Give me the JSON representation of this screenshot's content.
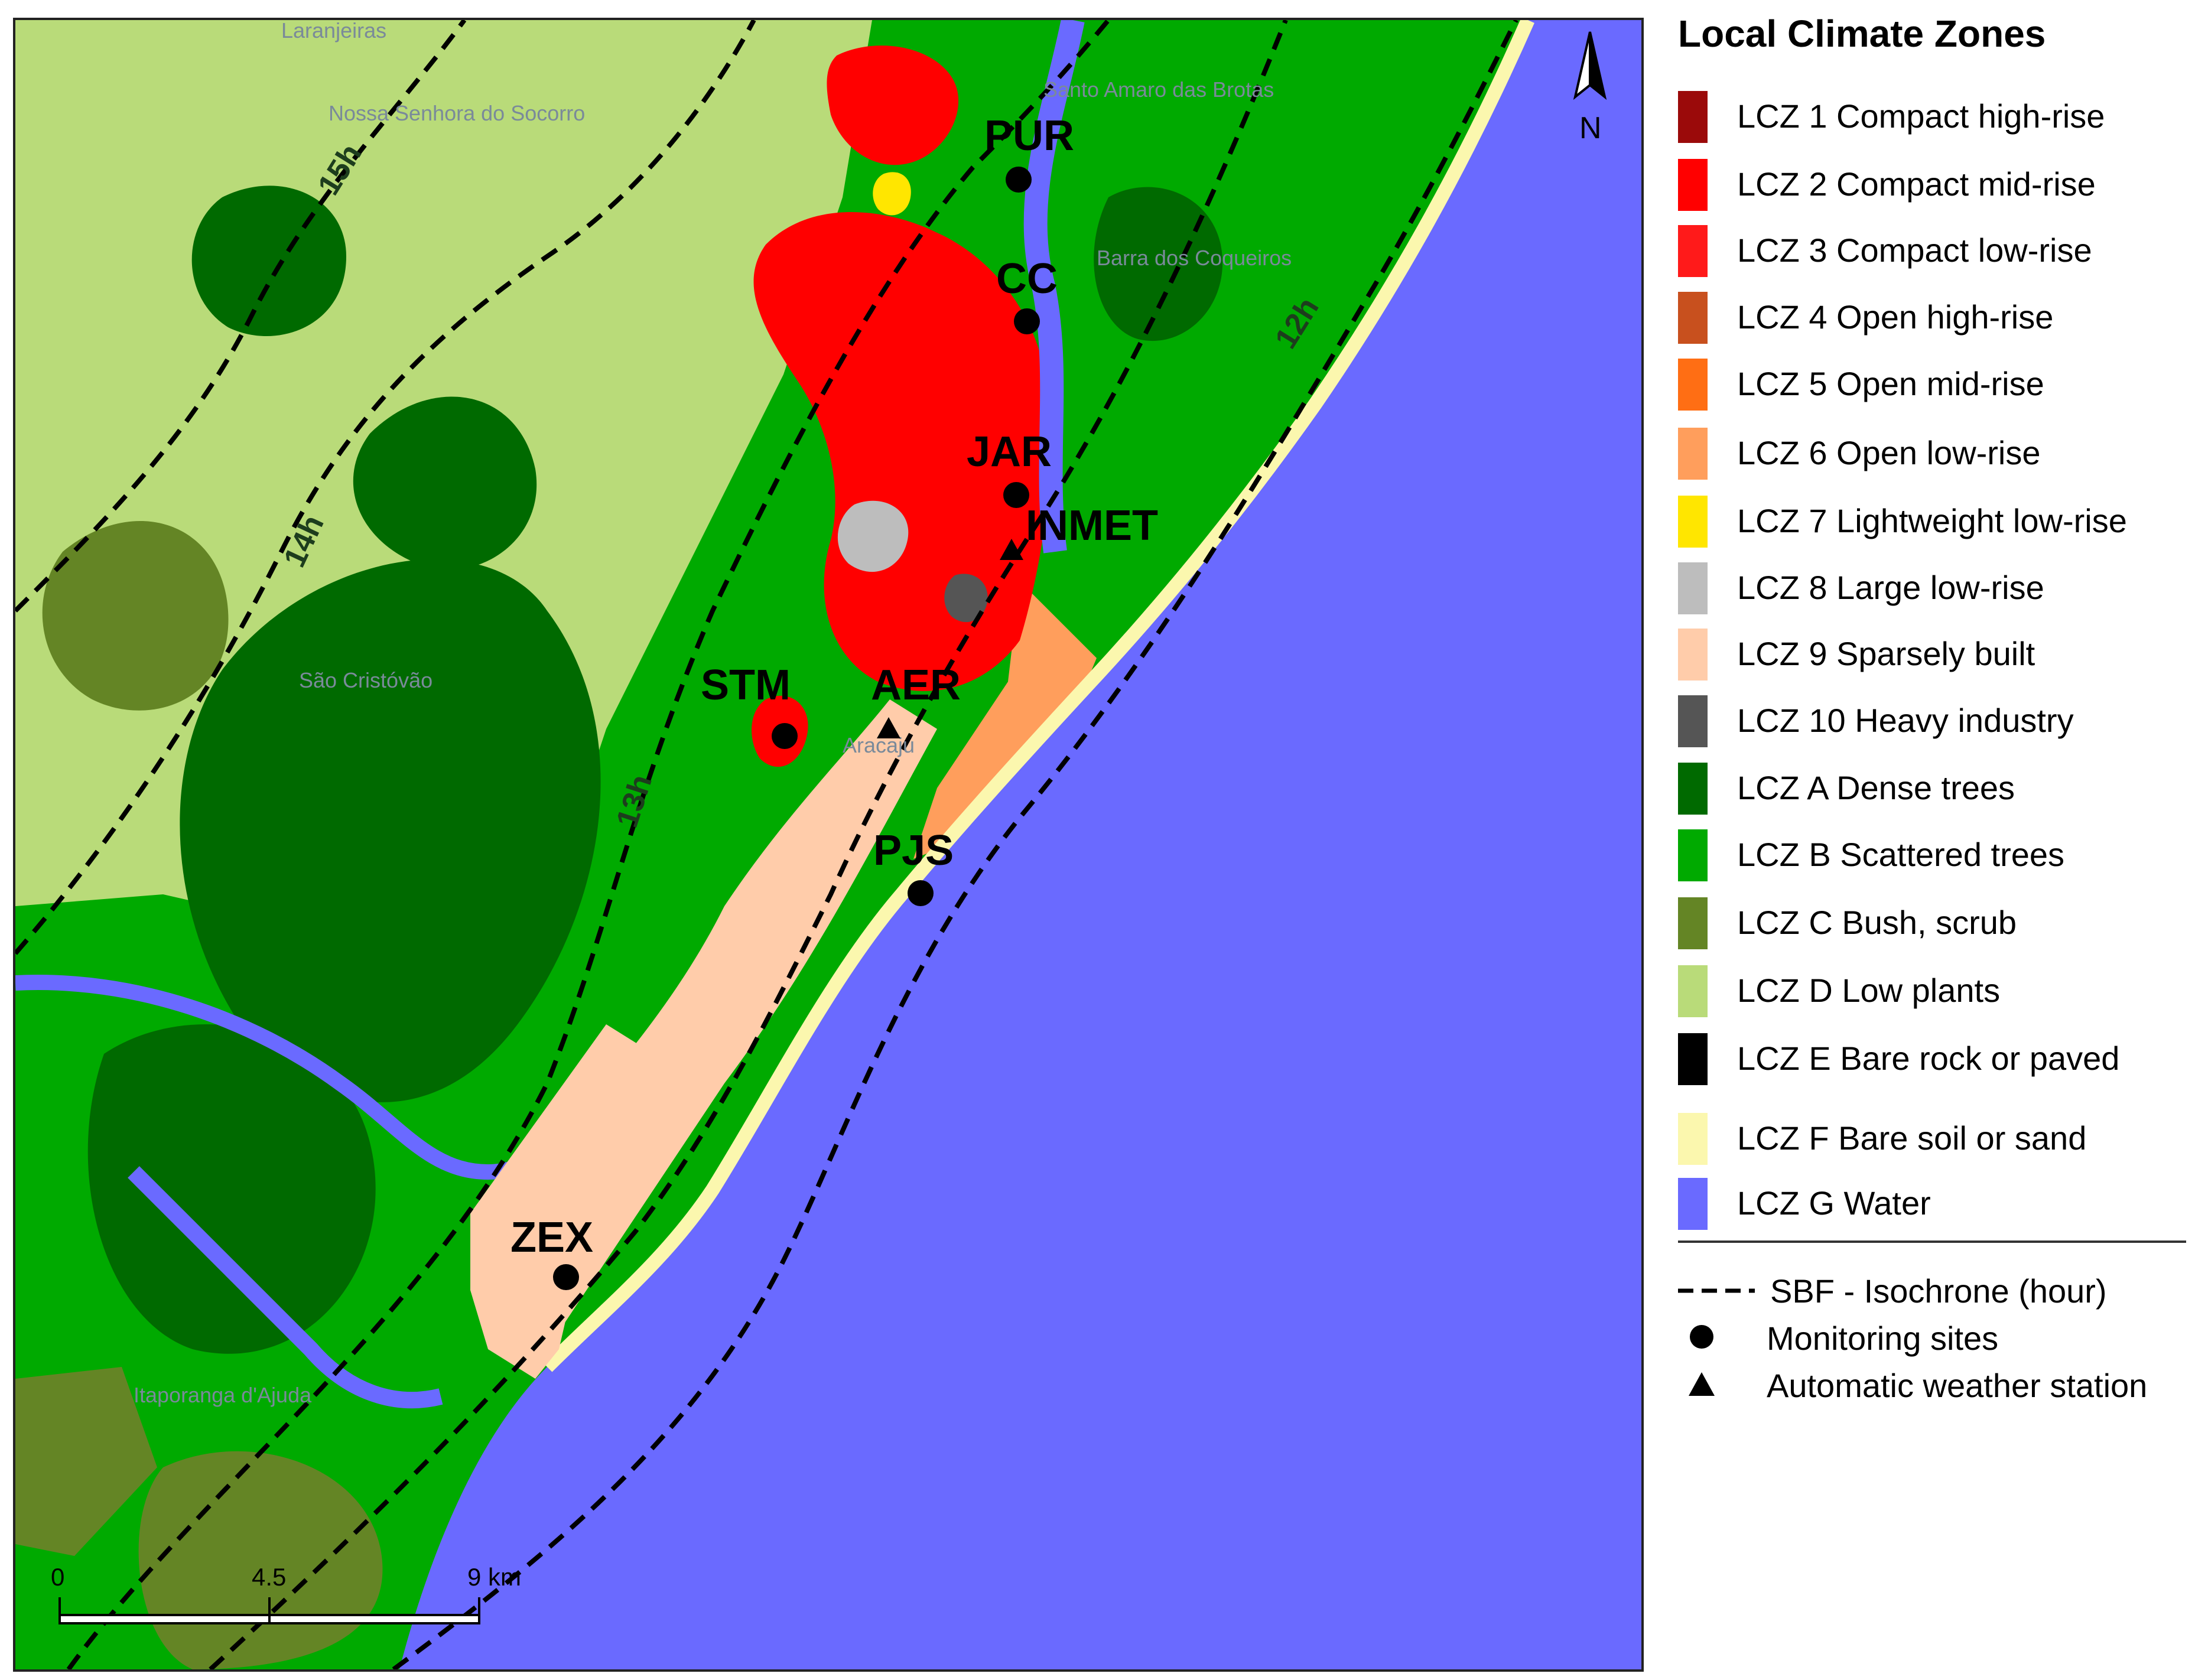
{
  "legend": {
    "title": "Local Climate Zones",
    "zones": [
      {
        "label": "LCZ 1 Compact high-rise",
        "color": "#9b0a0a"
      },
      {
        "label": "LCZ 2 Compact mid-rise",
        "color": "#ff0000"
      },
      {
        "label": "LCZ 3 Compact low-rise",
        "color": "#ff1a1a"
      },
      {
        "label": "LCZ 4 Open high-rise",
        "color": "#c8501e"
      },
      {
        "label": "LCZ 5 Open mid-rise",
        "color": "#ff6e14"
      },
      {
        "label": "LCZ 6 Open low-rise",
        "color": "#ff9e5c"
      },
      {
        "label": "LCZ 7 Lightweight low-rise",
        "color": "#ffe600"
      },
      {
        "label": "LCZ 8 Large low-rise",
        "color": "#bdbdbd"
      },
      {
        "label": "LCZ 9 Sparsely built",
        "color": "#ffccaa"
      },
      {
        "label": "LCZ 10 Heavy industry",
        "color": "#555555"
      },
      {
        "label": "LCZ A Dense trees",
        "color": "#006a00"
      },
      {
        "label": "LCZ B Scattered trees",
        "color": "#00aa00"
      },
      {
        "label": "LCZ C Bush, scrub",
        "color": "#648525"
      },
      {
        "label": "LCZ D Low plants",
        "color": "#b9db79"
      },
      {
        "label": "LCZ E Bare rock or paved",
        "color": "#000000"
      },
      {
        "label": "LCZ F Bare soil or sand",
        "color": "#fbf7ae"
      },
      {
        "label": "LCZ G Water",
        "color": "#6a6aff"
      }
    ],
    "symbols": [
      {
        "label": "SBF - Isochrone (hour)",
        "icon": "dashed-line-icon"
      },
      {
        "label": "Monitoring sites",
        "icon": "circle-icon"
      },
      {
        "label": "Automatic weather station",
        "icon": "triangle-icon"
      }
    ]
  },
  "map": {
    "sites": [
      {
        "label": "PUR",
        "kind": "monitoring"
      },
      {
        "label": "CC",
        "kind": "monitoring"
      },
      {
        "label": "JAR",
        "kind": "monitoring"
      },
      {
        "label": "INMET",
        "kind": "weather-station"
      },
      {
        "label": "STM",
        "kind": "monitoring"
      },
      {
        "label": "AER",
        "kind": "weather-station"
      },
      {
        "label": "PJS",
        "kind": "monitoring"
      },
      {
        "label": "ZEX",
        "kind": "monitoring"
      }
    ],
    "isochrones": [
      "15h",
      "14h",
      "13h",
      "12h"
    ],
    "place_names": [
      "Laranjeiras",
      "Nossa Senhora do Socorro",
      "Santo Amaro das Brotas",
      "Barra dos Coqueiros",
      "São Cristóvão",
      "Aracaju",
      "Itaporanga d'Ajuda"
    ],
    "scale_bar": {
      "ticks": [
        "0",
        "4.5",
        "9 km"
      ]
    },
    "north_arrow": "N"
  }
}
